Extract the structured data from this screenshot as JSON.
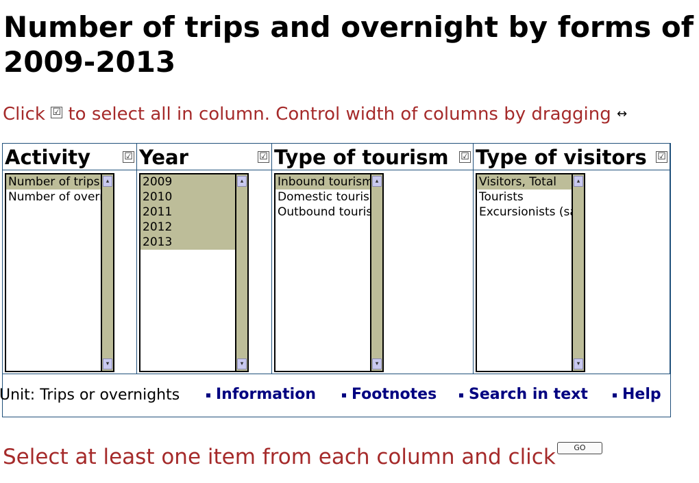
{
  "title_line1": "Number of trips and overnight by forms of to",
  "title_line2": "2009-2013",
  "instruction": {
    "before": "Click",
    "checkbox_glyph": "☑",
    "middle": "to select all in column. Control width of columns by dragging",
    "drag_glyph": "↔"
  },
  "columns": [
    {
      "title": "Activity",
      "items": [
        {
          "label": "Number of trips",
          "selected": true
        },
        {
          "label": "Number of overnights",
          "selected": false
        }
      ]
    },
    {
      "title": "Year",
      "items": [
        {
          "label": "2009",
          "selected": true
        },
        {
          "label": "2010",
          "selected": true
        },
        {
          "label": "2011",
          "selected": true
        },
        {
          "label": "2012",
          "selected": true
        },
        {
          "label": "2013",
          "selected": true
        }
      ]
    },
    {
      "title": "Type of tourism",
      "items": [
        {
          "label": "Inbound tourism",
          "selected": true
        },
        {
          "label": "Domestic tourism",
          "selected": false
        },
        {
          "label": "Outbound tourism",
          "selected": false
        }
      ]
    },
    {
      "title": "Type of visitors",
      "items": [
        {
          "label": "Visitors, Total",
          "selected": true
        },
        {
          "label": "Tourists",
          "selected": false
        },
        {
          "label": "Excursionists (same-day visitors)",
          "selected": false
        }
      ]
    }
  ],
  "footer": {
    "unit": "Unit: Trips or overnights",
    "links": [
      "Information",
      "Footnotes",
      "Search in text",
      "Help"
    ]
  },
  "select_message": "Select at least one item from each column and click",
  "go_label": "GO",
  "colors": {
    "selected_bg": "#bdbd99",
    "instruction_text": "#a52a2a",
    "link_text": "#000080",
    "border": "#1f4f7a"
  }
}
